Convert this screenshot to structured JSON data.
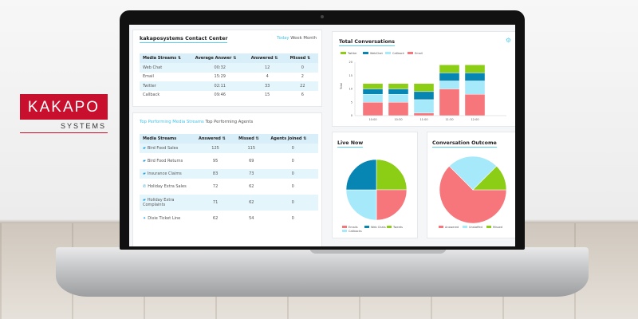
{
  "logo": {
    "name": "KAKAPO",
    "tagline": "SYSTEMS",
    "color": "#c8102e"
  },
  "contact_center": {
    "title": "kakaposystems Contact Center",
    "ranges": [
      "Today",
      "Week",
      "Month"
    ],
    "active_range": "Today",
    "columns": [
      "Media Streams ⇅",
      "Average Answer ⇅",
      "Answered ⇅",
      "Missed ⇅"
    ],
    "rows": [
      [
        "Web Chat",
        "00:32",
        "12",
        "0"
      ],
      [
        "Email",
        "15:29",
        "4",
        "2"
      ],
      [
        "Twitter",
        "02:11",
        "33",
        "22"
      ],
      [
        "Callback",
        "09:46",
        "15",
        "6"
      ]
    ]
  },
  "top_performing": {
    "tabs": [
      "Top Performing Media Streams",
      "Top Performing Agents"
    ],
    "active_tab": "Top Performing Media Streams",
    "columns": [
      "Media Streams",
      "Answered ⇅",
      "Missed ⇅",
      "Agents Joined ⇅"
    ],
    "rows": [
      {
        "icon": "chat-icon",
        "name": "Bird Food Sales",
        "answered": "125",
        "missed": "115",
        "agents": "0"
      },
      {
        "icon": "chat-icon",
        "name": "Bird Food Returns",
        "answered": "95",
        "missed": "69",
        "agents": "0"
      },
      {
        "icon": "chat-icon",
        "name": "Insurance Claims",
        "answered": "83",
        "missed": "73",
        "agents": "0"
      },
      {
        "icon": "phone-icon",
        "name": "Holiday Extra Sales",
        "answered": "72",
        "missed": "62",
        "agents": "0"
      },
      {
        "icon": "chat-icon",
        "name": "Holiday Extra Complaints",
        "answered": "71",
        "missed": "62",
        "agents": "0"
      },
      {
        "icon": "twitter-icon",
        "name": "Dixie Ticket Line",
        "answered": "62",
        "missed": "54",
        "agents": "0"
      }
    ]
  },
  "chart_data": [
    {
      "type": "bar",
      "stacked": true,
      "title": "Total Conversations",
      "ylabel": "Total",
      "ylim": [
        0,
        20
      ],
      "yticks": [
        0,
        5,
        10,
        15,
        20
      ],
      "legend": "top-left",
      "categories": [
        "10:00",
        "10:30",
        "11:00",
        "11:30",
        "12:00"
      ],
      "series": [
        {
          "name": "Email",
          "color": "#f6767b",
          "values": [
            5,
            5,
            1,
            10,
            8
          ]
        },
        {
          "name": "Callback",
          "color": "#a6e9fa",
          "values": [
            3,
            3,
            5,
            3,
            5
          ]
        },
        {
          "name": "WebChat",
          "color": "#0786b3",
          "values": [
            2,
            2,
            3,
            3,
            3
          ]
        },
        {
          "name": "Twitter",
          "color": "#8ccd15",
          "values": [
            2,
            2,
            3,
            3,
            3
          ]
        }
      ],
      "legend_order": [
        "Twitter",
        "WebChat",
        "Callback",
        "Email"
      ]
    },
    {
      "type": "pie",
      "title": "Live Now",
      "legend": "bottom",
      "slices": [
        {
          "name": "Tweets",
          "value": 25,
          "color": "#8ccd15"
        },
        {
          "name": "Emails",
          "value": 25,
          "color": "#f6767b"
        },
        {
          "name": "Callbacks",
          "value": 25,
          "color": "#a6e9fa"
        },
        {
          "name": "Web Chats",
          "value": 25,
          "color": "#0786b3"
        }
      ],
      "legend_order": [
        "Emails",
        "Web Chats",
        "Tweets",
        "Callbacks"
      ]
    },
    {
      "type": "pie",
      "title": "Conversation Outcome",
      "legend": "bottom",
      "slices": [
        {
          "name": "Answered",
          "value": 62.5,
          "color": "#f6767b"
        },
        {
          "name": "Unstaffed",
          "value": 25,
          "color": "#a6e9fa"
        },
        {
          "name": "Missed",
          "value": 12.5,
          "color": "#8ccd15"
        }
      ],
      "start_angle_deg": 90
    }
  ]
}
